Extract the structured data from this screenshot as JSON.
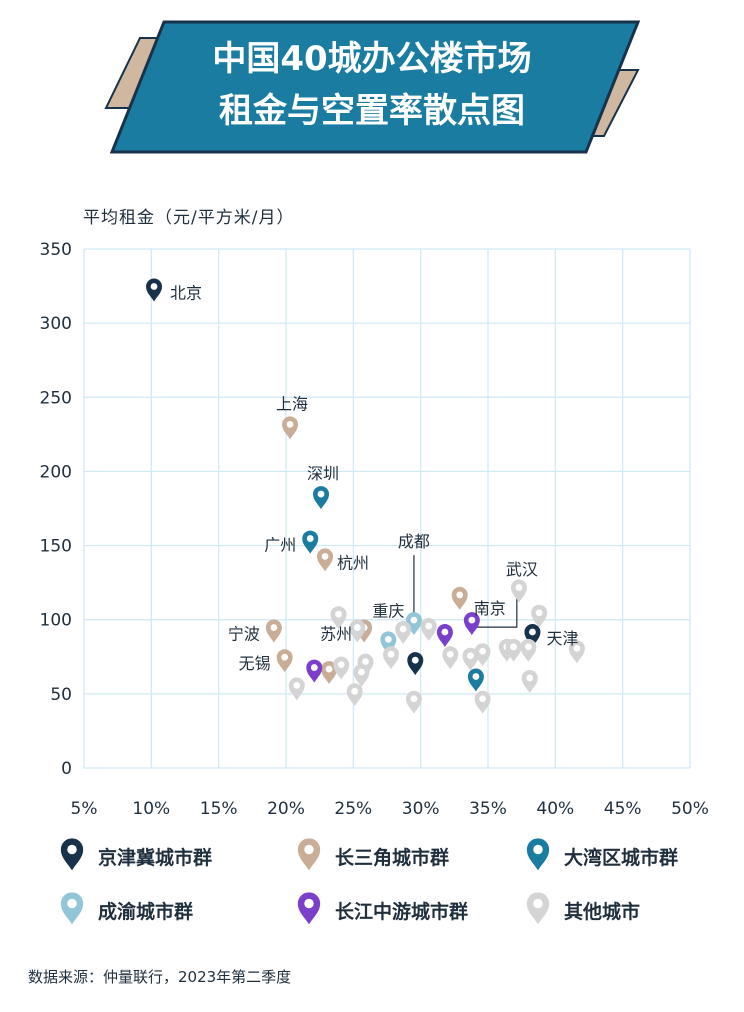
{
  "title": {
    "line1": "中国40城办公楼市场",
    "line2": "租金与空置率散点图"
  },
  "source": "数据来源：仲量联行，2023年第二季度",
  "colors": {
    "banner": "#1a7ca0",
    "banner_stroke": "#17324a",
    "accent": "#d0b79f",
    "grid": "#cfe9f3",
    "jjj": "#17324a",
    "csj": "#c9ad96",
    "dwq": "#1a7ca0",
    "cy": "#93c5d8",
    "cjzy": "#7b3fcc",
    "other": "#d4d4d4"
  },
  "chart_data": {
    "type": "scatter",
    "ylabel": "平均租金（元/平方米/月）",
    "xlabel": "",
    "xlim": [
      0.05,
      0.5
    ],
    "ylim": [
      0,
      350
    ],
    "xticks": [
      "5%",
      "10%",
      "15%",
      "20%",
      "25%",
      "30%",
      "35%",
      "40%",
      "45%",
      "50%"
    ],
    "yticks": [
      "350",
      "300",
      "250",
      "200",
      "150",
      "100",
      "50",
      "0"
    ],
    "grid": true,
    "legend_position": "bottom",
    "series": [
      {
        "name": "京津冀城市群",
        "group": "jjj",
        "points": [
          {
            "label": "北京",
            "x": 0.102,
            "y": 320
          },
          {
            "label": "天津",
            "x": 0.383,
            "y": 87
          },
          {
            "label": "",
            "x": 0.296,
            "y": 68
          }
        ]
      },
      {
        "name": "长三角城市群",
        "group": "csj",
        "points": [
          {
            "label": "上海",
            "x": 0.203,
            "y": 227
          },
          {
            "label": "杭州",
            "x": 0.229,
            "y": 138
          },
          {
            "label": "宁波",
            "x": 0.191,
            "y": 90
          },
          {
            "label": "苏州",
            "x": 0.258,
            "y": 90
          },
          {
            "label": "无锡",
            "x": 0.199,
            "y": 70
          },
          {
            "label": "南京",
            "x": 0.329,
            "y": 112
          },
          {
            "label": "",
            "x": 0.232,
            "y": 62
          }
        ]
      },
      {
        "name": "大湾区城市群",
        "group": "dwq",
        "points": [
          {
            "label": "深圳",
            "x": 0.226,
            "y": 180
          },
          {
            "label": "广州",
            "x": 0.218,
            "y": 150
          },
          {
            "label": "",
            "x": 0.341,
            "y": 57
          }
        ]
      },
      {
        "name": "成渝城市群",
        "group": "cy",
        "points": [
          {
            "label": "成都",
            "x": 0.295,
            "y": 95
          },
          {
            "label": "重庆",
            "x": 0.276,
            "y": 82
          }
        ]
      },
      {
        "name": "长江中游城市群",
        "group": "cjzy",
        "points": [
          {
            "label": "武汉",
            "x": 0.338,
            "y": 95
          },
          {
            "label": "",
            "x": 0.318,
            "y": 87
          },
          {
            "label": "",
            "x": 0.221,
            "y": 63
          }
        ]
      },
      {
        "name": "其他城市",
        "group": "other",
        "points": [
          {
            "x": 0.373,
            "y": 117
          },
          {
            "x": 0.388,
            "y": 100
          },
          {
            "x": 0.239,
            "y": 99
          },
          {
            "x": 0.253,
            "y": 90
          },
          {
            "x": 0.287,
            "y": 89
          },
          {
            "x": 0.306,
            "y": 91
          },
          {
            "x": 0.278,
            "y": 72
          },
          {
            "x": 0.259,
            "y": 67
          },
          {
            "x": 0.256,
            "y": 60
          },
          {
            "x": 0.241,
            "y": 65
          },
          {
            "x": 0.322,
            "y": 72
          },
          {
            "x": 0.337,
            "y": 71
          },
          {
            "x": 0.346,
            "y": 74
          },
          {
            "x": 0.364,
            "y": 77
          },
          {
            "x": 0.369,
            "y": 77
          },
          {
            "x": 0.38,
            "y": 77
          },
          {
            "x": 0.416,
            "y": 76
          },
          {
            "x": 0.381,
            "y": 56
          },
          {
            "x": 0.208,
            "y": 51
          },
          {
            "x": 0.251,
            "y": 47
          },
          {
            "x": 0.295,
            "y": 42
          },
          {
            "x": 0.346,
            "y": 42
          }
        ]
      }
    ]
  }
}
